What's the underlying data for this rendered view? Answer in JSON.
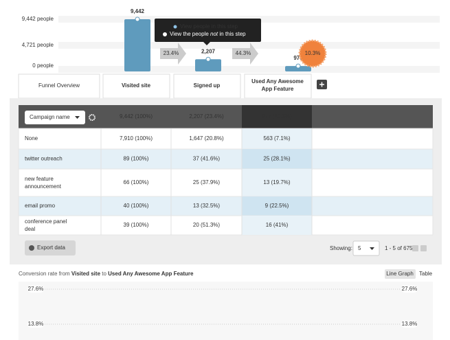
{
  "funnel": {
    "yticks": [
      {
        "value": 9442,
        "label": "9,442 people"
      },
      {
        "value": 4721,
        "label": "4,721 people"
      },
      {
        "value": 0,
        "label": "0 people"
      }
    ],
    "steps": [
      {
        "name": "Visited site",
        "value": 9442,
        "value_label": "9,442"
      },
      {
        "name": "Signed up",
        "value": 2207,
        "value_label": "2,207"
      },
      {
        "name": "Used Any Awesome App Feature",
        "value": 977,
        "value_label": "977"
      }
    ],
    "conversions": [
      "23.4%",
      "44.3%"
    ],
    "overall": "10.3%",
    "tooltip": {
      "first": "View people in this step",
      "second": [
        "View the people ",
        "not",
        " in this step"
      ]
    }
  },
  "tabs": {
    "overview": "Funnel Overview"
  },
  "table": {
    "selector": "Campaign name",
    "header": [
      "9,442 (100%)",
      "2,207 (23.4%)",
      "977 (10.3%)"
    ],
    "rows": [
      [
        "None",
        "7,910 (100%)",
        "1,647 (20.8%)",
        "563 (7.1%)"
      ],
      [
        "twitter outreach",
        "89 (100%)",
        "37 (41.6%)",
        "25 (28.1%)"
      ],
      [
        "new feature announcement",
        "66 (100%)",
        "25 (37.9%)",
        "13 (19.7%)"
      ],
      [
        "email promo",
        "40 (100%)",
        "13 (32.5%)",
        "9 (22.5%)"
      ],
      [
        "conference panel deal",
        "39 (100%)",
        "20 (51.3%)",
        "16 (41%)"
      ]
    ]
  },
  "footer": {
    "export": "Export data",
    "showing": "Showing:",
    "page_size": "5",
    "range": "1 - 5 of 675"
  },
  "conversion": {
    "title": [
      "Conversion rate from ",
      "Visited site",
      " to ",
      "Used Any Awesome App Feature"
    ],
    "views": [
      "Line Graph",
      "Table"
    ],
    "yticks": [
      {
        "value": 27.6,
        "label": "27.6%"
      },
      {
        "value": 13.8,
        "label": "13.8%"
      }
    ]
  }
}
